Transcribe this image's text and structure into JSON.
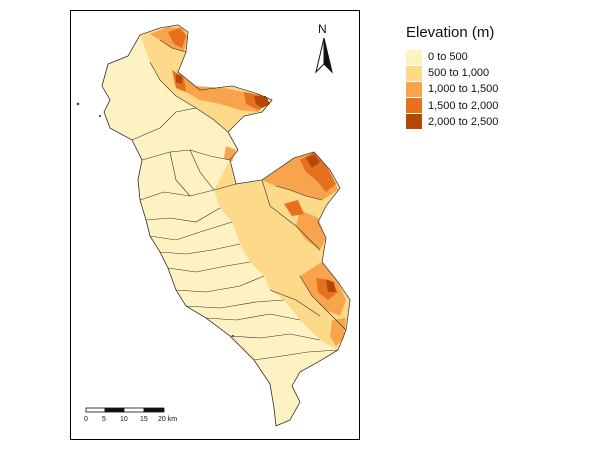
{
  "legend": {
    "title": "Elevation (m)",
    "classes": [
      {
        "label": "0 to 500",
        "color": "#fff2c2"
      },
      {
        "label": "500 to 1,000",
        "color": "#fdd98a"
      },
      {
        "label": "1,000 to 1,500",
        "color": "#f7a44d"
      },
      {
        "label": "1,500 to 2,000",
        "color": "#e7701f"
      },
      {
        "label": "2,000 to 2,500",
        "color": "#b54708"
      }
    ]
  },
  "north_arrow": {
    "label": "N",
    "icon": "north-arrow-icon"
  },
  "scale_bar": {
    "ticks": [
      "0",
      "5",
      "10",
      "15",
      "20 km"
    ]
  },
  "map": {
    "border_color": "#555555",
    "outline_color": "#333333"
  }
}
